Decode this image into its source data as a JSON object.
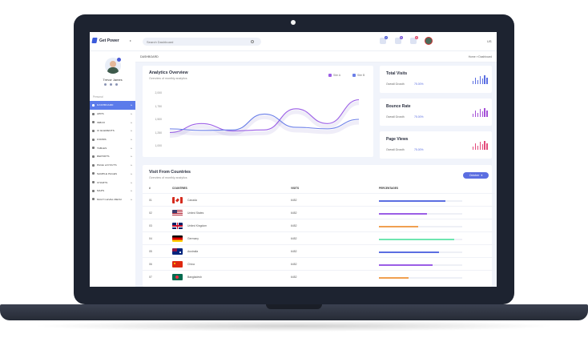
{
  "header": {
    "brand": "Get Power",
    "search_placeholder": "Search Dashboard",
    "notifications": [
      {
        "icon": "email-icon",
        "count": "2",
        "color": "#4b5bd6"
      },
      {
        "icon": "chat-icon",
        "count": "5",
        "color": "#7b55d6"
      },
      {
        "icon": "bell-icon",
        "count": "6",
        "color": "#e34b6b"
      }
    ],
    "language": "US"
  },
  "sidebar": {
    "user_name": "Trevor James",
    "section": "Personal",
    "items": [
      {
        "label": "DASHBOARD",
        "icon": "home-icon",
        "active": true
      },
      {
        "label": "APPS",
        "icon": "grid-icon"
      },
      {
        "label": "INBOX",
        "icon": "inbox-icon"
      },
      {
        "label": "UI ELEMENTS",
        "icon": "wrench-icon"
      },
      {
        "label": "FORMS",
        "icon": "form-icon"
      },
      {
        "label": "TABLES",
        "icon": "table-icon"
      },
      {
        "label": "REPORTS",
        "icon": "report-icon"
      },
      {
        "label": "PAGE LAYOUTS",
        "icon": "layout-icon"
      },
      {
        "label": "SAMPLE PAGES",
        "icon": "pages-icon"
      },
      {
        "label": "CHARTS",
        "icon": "chart-icon"
      },
      {
        "label": "MAPS",
        "icon": "map-icon"
      },
      {
        "label": "MULTI LEVEL MENU",
        "icon": "menu-icon"
      }
    ]
  },
  "breadcrumb": {
    "title": "DASHBOARD",
    "home": "Home",
    "separator": "»",
    "current": "Dashboard"
  },
  "analytics": {
    "title": "Analytics Overview",
    "subtitle": "Overview of monthly analytics"
  },
  "chart_data": {
    "type": "line",
    "title": "Analytics Overview",
    "subtitle": "Overview of monthly analytics",
    "categories": [
      "01",
      "02",
      "03",
      "04",
      "05",
      "06",
      "07"
    ],
    "yticks": [
      "2,000",
      "1,750",
      "1,500",
      "1,250",
      "1,000"
    ],
    "ylim": [
      1000,
      2000
    ],
    "legend_position": "top-right",
    "series": [
      {
        "name": "Site A",
        "color": "#9b5ee6",
        "values": [
          1250,
          1420,
          1280,
          1300,
          1700,
          1420,
          1870
        ]
      },
      {
        "name": "Site B",
        "color": "#6b7fe8",
        "values": [
          1320,
          1290,
          1300,
          1600,
          1350,
          1320,
          1500
        ]
      }
    ]
  },
  "stats": [
    {
      "title": "Total Visits",
      "label": "Overall Growth",
      "value": "75.00%",
      "color": "#5b6ee1",
      "bars": [
        0.4,
        0.7,
        0.5,
        0.9,
        0.6,
        1.0,
        0.7
      ]
    },
    {
      "title": "Bounce Rate",
      "label": "Overall Growth",
      "value": "75.00%",
      "color": "#a44fd6",
      "bars": [
        0.4,
        0.7,
        0.5,
        0.9,
        0.6,
        1.0,
        0.7
      ]
    },
    {
      "title": "Page Views",
      "label": "Overall Growth",
      "value": "75.00%",
      "color": "#e34b7b",
      "bars": [
        0.4,
        0.7,
        0.5,
        0.9,
        0.6,
        1.0,
        0.7
      ]
    }
  ],
  "countries": {
    "title": "Visit From Countries",
    "subtitle": "Overview of monthly analytics",
    "filter": "October",
    "headers": {
      "num": "#",
      "country": "COUNTRIES",
      "visits": "VISITS",
      "pct": "PERCENTAGES"
    },
    "rows": [
      {
        "num": "01",
        "country": "Canada",
        "visits": "6452",
        "pct": 0.8,
        "color": "#5b6ee1",
        "flag": "canada-flag"
      },
      {
        "num": "02",
        "country": "United States",
        "visits": "6452",
        "pct": 0.58,
        "color": "#9b5ee6",
        "flag": "us-flag"
      },
      {
        "num": "03",
        "country": "United Kingdom",
        "visits": "6452",
        "pct": 0.47,
        "color": "#f0a050",
        "flag": "uk-flag"
      },
      {
        "num": "04",
        "country": "Germany",
        "visits": "6452",
        "pct": 0.9,
        "color": "#6ee6b0",
        "flag": "germany-flag"
      },
      {
        "num": "05",
        "country": "Australia",
        "visits": "6452",
        "pct": 0.72,
        "color": "#5b6ee1",
        "flag": "australia-flag"
      },
      {
        "num": "06",
        "country": "China",
        "visits": "6452",
        "pct": 0.64,
        "color": "#9b5ee6",
        "flag": "china-flag"
      },
      {
        "num": "07",
        "country": "Bangladesh",
        "visits": "6452",
        "pct": 0.36,
        "color": "#f0a050",
        "flag": "bangladesh-flag"
      }
    ]
  }
}
